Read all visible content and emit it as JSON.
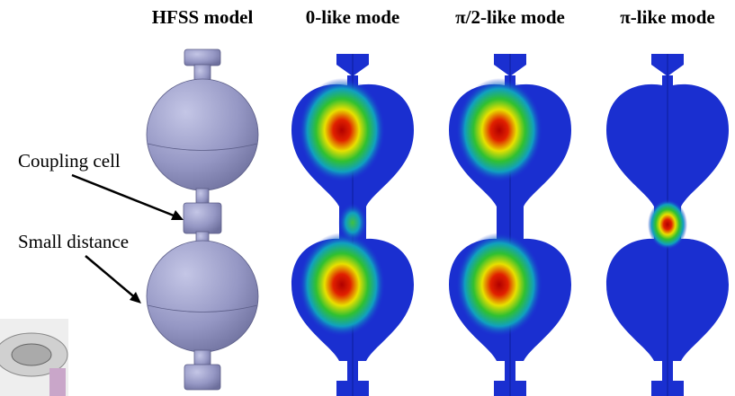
{
  "header": {
    "columns": [
      "HFSS model",
      "0-like mode",
      "π/2-like mode",
      "π-like mode"
    ]
  },
  "annotations": [
    "Coupling cell",
    "Small distance"
  ]
}
